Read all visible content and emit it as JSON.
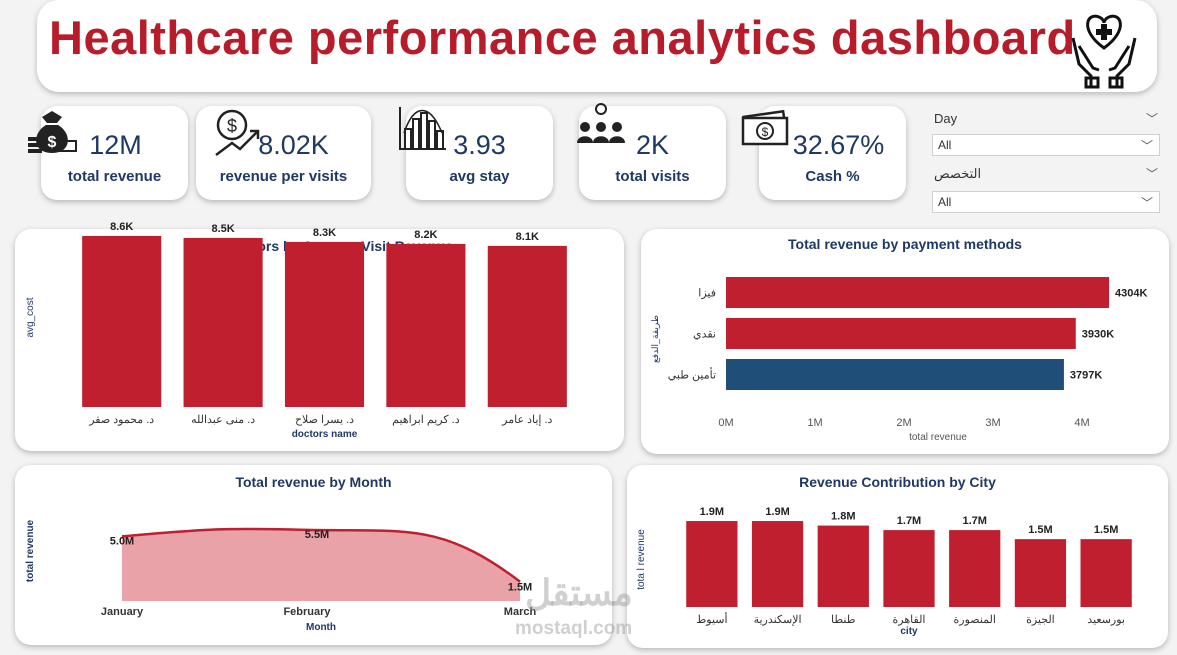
{
  "header": {
    "title": "Healthcare performance analytics dashboard",
    "icon": "heart-hands-icon"
  },
  "kpis": [
    {
      "value": "12M",
      "label": "total revenue",
      "icon": "money-bag-icon"
    },
    {
      "value": "8.02K",
      "label": "revenue per visits",
      "icon": "dollar-growth-icon"
    },
    {
      "value": "3.93",
      "label": "avg stay",
      "icon": "bar-distribution-icon"
    },
    {
      "value": "2K",
      "label": "total visits",
      "icon": "people-group-icon"
    },
    {
      "value": "32.67%",
      "label": "Cash %",
      "icon": "cash-stack-icon"
    }
  ],
  "slicers": [
    {
      "label": "Day",
      "value": "All"
    },
    {
      "label": "التخصص",
      "value": "All"
    }
  ],
  "watermark": {
    "arabic": "مستقل",
    "latin": "mostaql.com"
  },
  "colors": {
    "accent": "#b71c2b",
    "bar": "#bf1f2e",
    "navy": "#1f4e79",
    "text": "#1f3864",
    "area": "#e8a2a8"
  },
  "chart_data": [
    {
      "type": "bar",
      "title": "Top 5 Doctors by Average Visit Revenue",
      "xlabel": "doctors name",
      "ylabel": "avg_cost",
      "categories": [
        "د. محمود صقر",
        "د. منى عبدالله",
        "د. يسرا صلاح",
        "د. كريم ابراهيم",
        "د. إياد عامر"
      ],
      "values": [
        8.6,
        8.5,
        8.3,
        8.2,
        8.1
      ],
      "value_labels": [
        "8.6K",
        "8.5K",
        "8.3K",
        "8.2K",
        "8.1K"
      ],
      "ylim": [
        0,
        9
      ]
    },
    {
      "type": "bar",
      "orientation": "horizontal",
      "title": "Total revenue by payment methods",
      "xlabel": "total revenue",
      "ylabel": "طريقة_الدفع",
      "categories": [
        "فيزا",
        "نقدي",
        "تأمين طبي"
      ],
      "values": [
        4304,
        3930,
        3797
      ],
      "value_labels": [
        "4304K",
        "3930K",
        "3797K"
      ],
      "bar_colors": [
        "#bf1f2e",
        "#bf1f2e",
        "#1f4e79"
      ],
      "xticks": [
        "0M",
        "1M",
        "2M",
        "3M",
        "4M"
      ],
      "xlim": [
        0,
        4500
      ]
    },
    {
      "type": "area",
      "title": "Total revenue by Month",
      "xlabel": "Month",
      "ylabel": "total revenue",
      "categories": [
        "January",
        "February",
        "March"
      ],
      "values": [
        5.0,
        5.5,
        1.5
      ],
      "value_labels": [
        "5.0M",
        "5.5M",
        "1.5M"
      ],
      "ylim": [
        0,
        6.5
      ]
    },
    {
      "type": "bar",
      "title": "Revenue Contribution by City",
      "xlabel": "city",
      "ylabel": "tota l revenue",
      "categories": [
        "أسيوط",
        "الإسكندرية",
        "طنطا",
        "القاهرة",
        "المنصورة",
        "الجيزة",
        "بورسعيد"
      ],
      "values": [
        1.9,
        1.9,
        1.8,
        1.7,
        1.7,
        1.5,
        1.5
      ],
      "value_labels": [
        "1.9M",
        "1.9M",
        "1.8M",
        "1.7M",
        "1.7M",
        "1.5M",
        "1.5M"
      ],
      "ylim": [
        0,
        2.1
      ]
    }
  ]
}
